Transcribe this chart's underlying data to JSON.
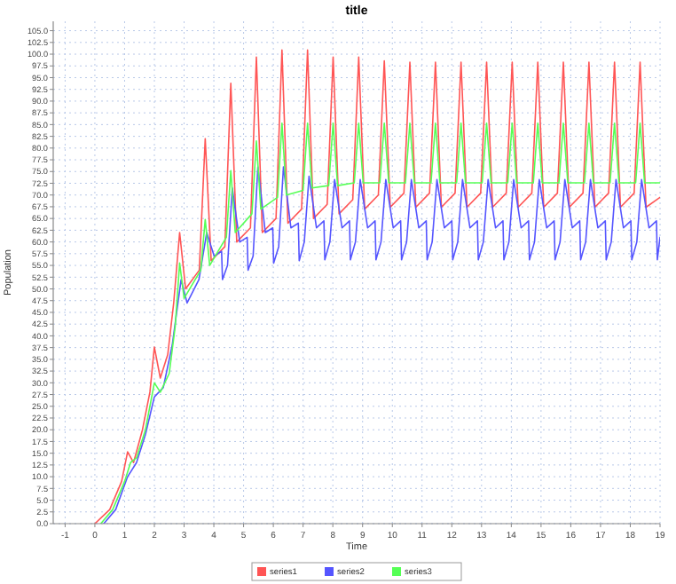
{
  "chart_data": {
    "type": "line",
    "title": "title",
    "xlabel": "Time",
    "ylabel": "Population",
    "xlim": [
      -1.4,
      19
    ],
    "xticks": [
      -1,
      0,
      1,
      2,
      3,
      4,
      5,
      6,
      7,
      8,
      9,
      10,
      11,
      12,
      13,
      14,
      15,
      16,
      17,
      18,
      19
    ],
    "ylim": [
      0,
      107
    ],
    "yticks": [
      {
        "value": 0,
        "label": "0.0"
      },
      {
        "value": 2.5,
        "label": "2.5"
      },
      {
        "value": 5,
        "label": "5.0"
      },
      {
        "value": 7.5,
        "label": "7.5"
      },
      {
        "value": 10,
        "label": "10.0"
      },
      {
        "value": 12.5,
        "label": "12.5"
      },
      {
        "value": 15,
        "label": "15.0"
      },
      {
        "value": 17.5,
        "label": "17.5"
      },
      {
        "value": 20,
        "label": "20.0"
      },
      {
        "value": 22.5,
        "label": "22.5"
      },
      {
        "value": 25,
        "label": "25.0"
      },
      {
        "value": 27.5,
        "label": "27.5"
      },
      {
        "value": 30,
        "label": "30.0"
      },
      {
        "value": 32.5,
        "label": "32.5"
      },
      {
        "value": 35,
        "label": "35.0"
      },
      {
        "value": 37.5,
        "label": "37.5"
      },
      {
        "value": 40,
        "label": "40.0"
      },
      {
        "value": 42.5,
        "label": "42.5"
      },
      {
        "value": 45,
        "label": "45.0"
      },
      {
        "value": 47.5,
        "label": "47.5"
      },
      {
        "value": 50,
        "label": "50.0"
      },
      {
        "value": 52.5,
        "label": "52.5"
      },
      {
        "value": 55,
        "label": "55.0"
      },
      {
        "value": 57.5,
        "label": "57.5"
      },
      {
        "value": 60,
        "label": "60.0"
      },
      {
        "value": 62.5,
        "label": "62.5"
      },
      {
        "value": 65,
        "label": "65.0"
      },
      {
        "value": 67.5,
        "label": "67.5"
      },
      {
        "value": 70,
        "label": "70.0"
      },
      {
        "value": 72.5,
        "label": "72.5"
      },
      {
        "value": 75,
        "label": "75.0"
      },
      {
        "value": 77.5,
        "label": "77.5"
      },
      {
        "value": 80,
        "label": "80.0"
      },
      {
        "value": 82.5,
        "label": "82.5"
      },
      {
        "value": 85,
        "label": "85.0"
      },
      {
        "value": 87.5,
        "label": "87.5"
      },
      {
        "value": 90,
        "label": "90.0"
      },
      {
        "value": 92.5,
        "label": "92.5"
      },
      {
        "value": 95,
        "label": "95.0"
      },
      {
        "value": 97.5,
        "label": "97.5"
      },
      {
        "value": 100,
        "label": "100.0"
      },
      {
        "value": 102.5,
        "label": "102.5"
      },
      {
        "value": 105,
        "label": "105.0"
      }
    ],
    "grid": true,
    "legend": "bottom",
    "marker": "none",
    "line_style": "solid",
    "series": [
      {
        "name": "series1",
        "color": "#ff5555",
        "x": [
          0,
          0.5,
          0.9,
          1.1,
          1.3,
          1.6,
          1.85,
          2.0,
          2.2,
          2.45,
          2.65,
          2.85,
          3.05,
          3.51,
          3.71,
          3.91,
          4.37,
          4.57,
          4.77,
          5.23,
          5.43,
          5.63,
          6.09,
          6.29,
          6.49,
          6.95,
          7.15,
          7.35,
          7.81,
          8.01,
          8.21,
          8.67,
          8.87,
          9.07,
          9.53,
          9.73,
          9.93,
          10.39,
          10.59,
          10.79,
          11.25,
          11.45,
          11.65,
          12.11,
          12.31,
          12.51,
          12.97,
          13.17,
          13.37,
          13.83,
          14.03,
          14.23,
          14.69,
          14.89,
          15.09,
          15.55,
          15.75,
          15.95,
          16.41,
          16.61,
          16.81,
          17.27,
          17.47,
          17.67,
          18.13,
          18.33,
          18.53,
          19
        ],
        "values": [
          0,
          3,
          9,
          15.3,
          13,
          20,
          28,
          37.6,
          31,
          36,
          47,
          62,
          50,
          54,
          82,
          56,
          59,
          93.8,
          60,
          63,
          99.4,
          62,
          65,
          100.9,
          64,
          67,
          100.9,
          65,
          68,
          99.4,
          66,
          69,
          99.4,
          67,
          70,
          98.6,
          67.4,
          70.4,
          98.3,
          67.4,
          70.4,
          98.3,
          67.4,
          70.4,
          98.3,
          67.4,
          70.4,
          98.3,
          67.4,
          70.4,
          98.3,
          67.4,
          70.4,
          98.3,
          67.4,
          70.4,
          98.3,
          67.4,
          70.4,
          98.3,
          67.4,
          70.4,
          98.3,
          67.4,
          70.4,
          98.3,
          67.4,
          69.5
        ]
      },
      {
        "name": "series2",
        "color": "#5555ff",
        "x": [
          0.3,
          0.7,
          1.1,
          1.4,
          1.7,
          2.0,
          2.3,
          2.6,
          2.9,
          3.1,
          3.5,
          3.76,
          4.01,
          4.26,
          4.29,
          4.46,
          4.62,
          4.87,
          5.12,
          5.15,
          5.32,
          5.48,
          5.73,
          5.98,
          6.01,
          6.18,
          6.34,
          6.59,
          6.84,
          6.87,
          7.04,
          7.2,
          7.45,
          7.7,
          7.73,
          7.9,
          8.06,
          8.31,
          8.56,
          8.59,
          8.76,
          8.92,
          9.17,
          9.42,
          9.45,
          9.62,
          9.78,
          10.03,
          10.28,
          10.31,
          10.48,
          10.64,
          10.89,
          11.14,
          11.17,
          11.34,
          11.5,
          11.75,
          12.0,
          12.03,
          12.2,
          12.36,
          12.61,
          12.86,
          12.89,
          13.06,
          13.22,
          13.47,
          13.72,
          13.75,
          13.92,
          14.08,
          14.33,
          14.58,
          14.61,
          14.78,
          14.94,
          15.19,
          15.44,
          15.47,
          15.64,
          15.8,
          16.05,
          16.3,
          16.33,
          16.5,
          16.66,
          16.91,
          17.16,
          17.19,
          17.36,
          17.52,
          17.77,
          18.02,
          18.05,
          18.22,
          18.38,
          18.63,
          18.88,
          18.91,
          19
        ],
        "values": [
          0,
          3,
          10,
          13,
          19,
          27,
          29,
          38,
          52,
          47,
          52,
          62,
          57,
          58,
          52,
          55,
          71.5,
          60,
          61,
          54,
          57,
          76,
          62,
          63,
          55.5,
          59,
          76,
          63,
          64,
          56,
          60,
          74,
          63,
          64.5,
          56.2,
          60,
          73.3,
          63,
          64.5,
          56.2,
          60,
          73.3,
          63,
          64.5,
          56.2,
          60,
          73.3,
          63,
          64.5,
          56.2,
          60,
          73.3,
          63,
          64.5,
          56.2,
          60,
          73.3,
          63,
          64.5,
          56.2,
          60,
          73.3,
          63,
          64.5,
          56.2,
          60,
          73.3,
          63,
          64.5,
          56.2,
          60,
          73.3,
          63,
          64.5,
          56.2,
          60,
          73.3,
          63,
          64.5,
          56.2,
          60,
          73.3,
          63,
          64.5,
          56.2,
          60,
          73.3,
          63,
          64.5,
          56.2,
          60,
          73.3,
          63,
          64.5,
          56.2,
          60,
          73.3,
          63,
          64.5,
          56.2,
          61
        ]
      },
      {
        "name": "series3",
        "color": "#55ff55",
        "x": [
          0.2,
          0.6,
          1.0,
          1.2,
          1.4,
          1.7,
          2.0,
          2.2,
          2.5,
          2.7,
          2.85,
          3.0,
          3.56,
          3.71,
          3.86,
          4.42,
          4.57,
          4.72,
          5.28,
          5.43,
          5.58,
          6.14,
          6.29,
          6.44,
          7.0,
          7.15,
          7.3,
          7.86,
          8.01,
          8.16,
          8.72,
          8.87,
          9.02,
          9.58,
          9.73,
          9.88,
          10.44,
          10.59,
          10.74,
          11.3,
          11.45,
          11.6,
          12.16,
          12.31,
          12.46,
          13.02,
          13.17,
          13.32,
          13.88,
          14.03,
          14.18,
          14.74,
          14.89,
          15.04,
          15.6,
          15.75,
          15.9,
          16.46,
          16.61,
          16.76,
          17.32,
          17.47,
          17.62,
          18.18,
          18.33,
          18.48,
          19
        ],
        "values": [
          0,
          3,
          9,
          13,
          14,
          20,
          30,
          28,
          32,
          42,
          55.5,
          48,
          54,
          64.8,
          55,
          61,
          75.2,
          62,
          66,
          81.5,
          67,
          69.5,
          85.3,
          70,
          71,
          85.3,
          71.5,
          72,
          85.3,
          72,
          72.6,
          85.3,
          72.6,
          72.6,
          85.3,
          72.6,
          72.6,
          85.3,
          72.6,
          72.6,
          85.3,
          72.6,
          72.6,
          85.3,
          72.6,
          72.6,
          85.3,
          72.6,
          72.6,
          85.3,
          72.6,
          72.6,
          85.3,
          72.6,
          72.6,
          85.3,
          72.6,
          72.6,
          85.3,
          72.6,
          72.6,
          85.3,
          72.6,
          72.6,
          85.3,
          72.6,
          72.6
        ]
      }
    ]
  }
}
